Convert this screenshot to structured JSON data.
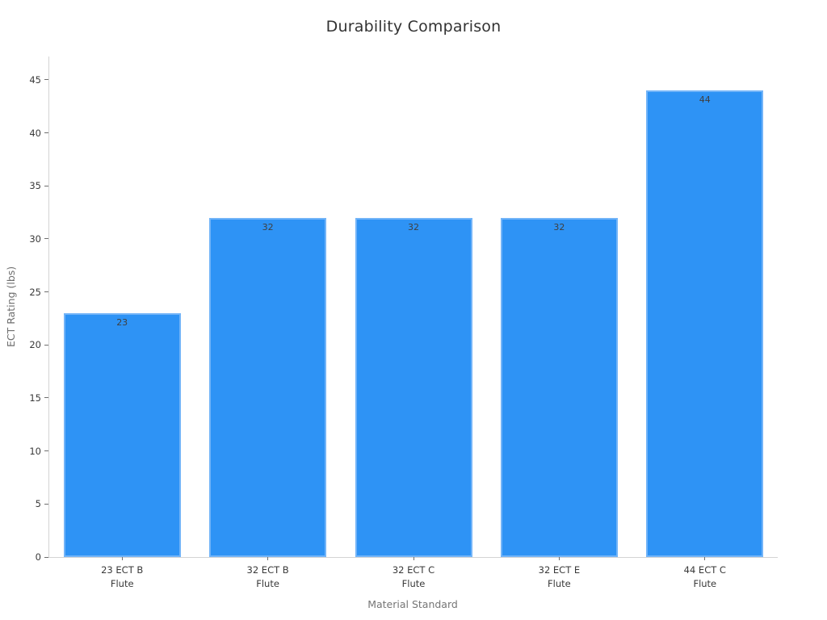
{
  "chart_data": {
    "type": "bar",
    "title": "Durability Comparison",
    "xlabel": "Material Standard",
    "ylabel": "ECT Rating (lbs)",
    "categories": [
      "23 ECT B\nFlute",
      "32 ECT B\nFlute",
      "32 ECT C\nFlute",
      "32 ECT E\nFlute",
      "44 ECT C\nFlute"
    ],
    "values": [
      23,
      32,
      32,
      32,
      44
    ],
    "bar_value_labels": [
      "23",
      "32",
      "32",
      "32",
      "44"
    ],
    "yticks": [
      0,
      5,
      10,
      15,
      20,
      25,
      30,
      35,
      40,
      45
    ],
    "ylim": [
      0,
      47.2
    ],
    "grid": false,
    "legend": null,
    "colors": {
      "bar_fill": "#2e93f5",
      "bar_edge": "#72b4f8",
      "title_text": "#323232",
      "tick_text": "#3a3a3a",
      "axis_label_text": "#757575",
      "spine": "#d4d4d4",
      "value_label_text": "#3f3f3f",
      "background": "#ffffff"
    }
  }
}
